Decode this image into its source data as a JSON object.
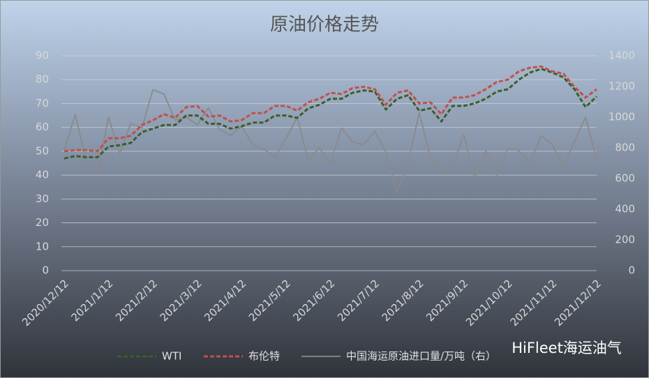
{
  "chart_data": {
    "type": "line",
    "title": "原油价格走势",
    "watermark": "HiFleet海运油气",
    "categories": [
      "2020/12/12",
      null,
      null,
      null,
      "2021/1/12",
      null,
      null,
      null,
      "2021/2/12",
      null,
      null,
      null,
      "2021/3/12",
      null,
      null,
      null,
      "2021/4/12",
      null,
      null,
      null,
      "2021/5/12",
      null,
      null,
      null,
      "2021/6/12",
      null,
      null,
      null,
      "2021/7/12",
      null,
      null,
      null,
      "2021/8/12",
      null,
      null,
      null,
      "2021/9/12",
      null,
      null,
      null,
      "2021/10/12",
      null,
      null,
      null,
      "2021/11/12",
      null,
      null,
      null,
      "2021/12/12"
    ],
    "series": [
      {
        "name": "WTI",
        "color": "#3b5e2b",
        "dash": true,
        "values": [
          47,
          48,
          47.5,
          47.5,
          52,
          52.5,
          53.5,
          58,
          59.5,
          61,
          61,
          65,
          65,
          61.5,
          61.5,
          59.5,
          60.5,
          62,
          62,
          65,
          65,
          64,
          68,
          69.5,
          72,
          72,
          74.5,
          75.5,
          75,
          67.5,
          72,
          73.5,
          67,
          68,
          62.5,
          69,
          69,
          70,
          72,
          75,
          76,
          80,
          83,
          84.5,
          83,
          81,
          76,
          68.5,
          73
        ]
      },
      {
        "name": "布伦特",
        "color": "#c0504d",
        "dash": true,
        "values": [
          50,
          50.5,
          50.5,
          50,
          55.5,
          55.5,
          56.5,
          61,
          63,
          65.5,
          64,
          68.5,
          69,
          64.5,
          65,
          62.5,
          63,
          66,
          66,
          69,
          69,
          67,
          70.5,
          72,
          74.5,
          74,
          76.5,
          77,
          76,
          69.5,
          74.5,
          75.5,
          70,
          70.5,
          65.5,
          72.5,
          72.5,
          73.5,
          76,
          79,
          80,
          83.5,
          85,
          85.5,
          83.5,
          82.5,
          77,
          72.5,
          76
        ]
      },
      {
        "name": "中国海运原油进口量/万吨（右）",
        "color": "#8a8a8a",
        "dash": false,
        "axis": "y2",
        "values": [
          780,
          1020,
          700,
          640,
          1000,
          760,
          960,
          930,
          1180,
          1150,
          980,
          1000,
          950,
          1060,
          920,
          880,
          940,
          820,
          790,
          740,
          860,
          1000,
          720,
          800,
          700,
          930,
          840,
          820,
          910,
          770,
          510,
          700,
          1030,
          740,
          650,
          670,
          890,
          600,
          780,
          620,
          800,
          780,
          700,
          880,
          820,
          680,
          840,
          1000,
          720
        ]
      }
    ],
    "ylim": [
      0,
      90
    ],
    "yticks": [
      0,
      10,
      20,
      30,
      40,
      50,
      60,
      70,
      80,
      90
    ],
    "y2lim": [
      0,
      1400
    ],
    "y2ticks": [
      0,
      200,
      400,
      600,
      800,
      1000,
      1200,
      1400
    ],
    "grid": true,
    "legend": "bottom"
  }
}
